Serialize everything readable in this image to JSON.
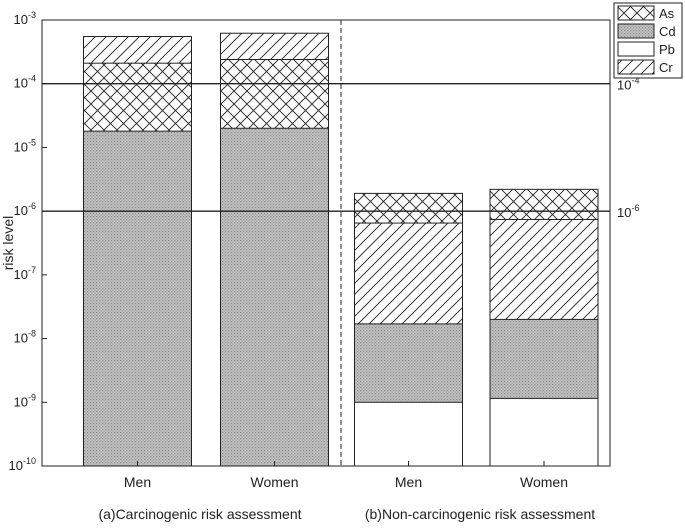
{
  "chart_data": {
    "type": "bar",
    "stacked": true,
    "y_scale": "log",
    "ylabel": "risk level",
    "ylim": [
      1e-10,
      0.001
    ],
    "y_ticks": [
      {
        "mant": "10",
        "exp": "-3",
        "value": 0.001
      },
      {
        "mant": "10",
        "exp": "-4",
        "value": 0.0001
      },
      {
        "mant": "10",
        "exp": "-5",
        "value": 1e-05
      },
      {
        "mant": "10",
        "exp": "-6",
        "value": 1e-06
      },
      {
        "mant": "10",
        "exp": "-7",
        "value": 1e-07
      },
      {
        "mant": "10",
        "exp": "-8",
        "value": 1e-08
      },
      {
        "mant": "10",
        "exp": "-9",
        "value": 1e-09
      },
      {
        "mant": "10",
        "exp": "-10",
        "value": 1e-10
      }
    ],
    "panels": [
      {
        "label": "(a)Carcinogenic risk assessment",
        "categories": [
          "Men",
          "Women"
        ]
      },
      {
        "label": "(b)Non-carcinogenic risk assessment",
        "categories": [
          "Men",
          "Women"
        ]
      }
    ],
    "categories": [
      "Men",
      "Women",
      "Men",
      "Women"
    ],
    "series": [
      {
        "name": "As",
        "pattern": "crosshatch",
        "values": [
          0.00021,
          0.00024,
          1.9e-06,
          2.2e-06
        ]
      },
      {
        "name": "Cd",
        "pattern": "gray-dots",
        "values": [
          1.8e-05,
          2e-05,
          1.7e-08,
          2e-08
        ]
      },
      {
        "name": "Pb",
        "pattern": "white",
        "values": [
          null,
          null,
          1e-09,
          1.15e-09
        ]
      },
      {
        "name": "Cr",
        "pattern": "diagonal",
        "values": [
          0.00055,
          0.00062,
          6.5e-07,
          7.4e-07
        ]
      }
    ],
    "thresholds": [
      {
        "value": 0.0001,
        "mant": "10",
        "exp": "-4"
      },
      {
        "value": 1e-06,
        "mant": "10",
        "exp": "-6"
      }
    ],
    "legend_position": "top-right",
    "colors": {
      "axis": "#222222",
      "cd_fill": "#b8b8b8",
      "bar_stroke": "#222222"
    }
  }
}
